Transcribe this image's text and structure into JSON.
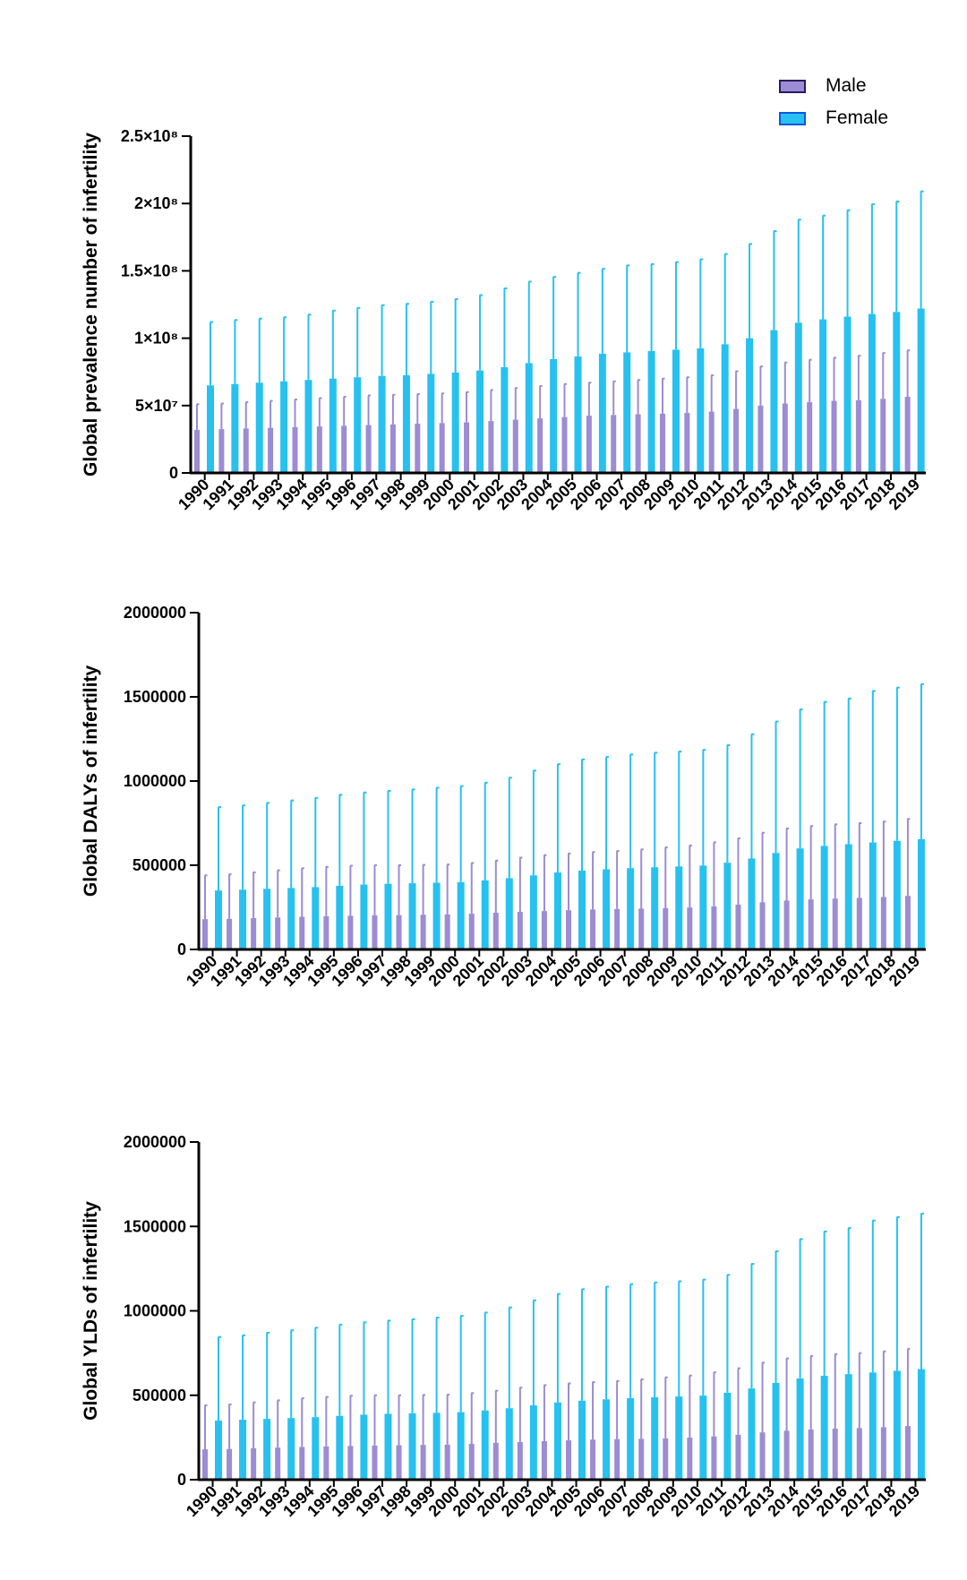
{
  "legend": {
    "male_label": "Male",
    "female_label": "Female"
  },
  "colors": {
    "male": "#9b8cd4",
    "female": "#27c1f0",
    "male_legend_edge": "#2a1a5e",
    "female_legend_edge": "#0a58e0"
  },
  "chart_data": [
    {
      "type": "bar",
      "ylabel": "Global prevalence number of infertility",
      "ylim": [
        0,
        250000000
      ],
      "yticks": [
        0,
        50000000,
        100000000,
        150000000,
        200000000,
        250000000
      ],
      "ytick_labels": [
        "0",
        "5×10⁷",
        "1×10⁸",
        "1.5×10⁸",
        "2×10⁸",
        "2.5×10⁸"
      ],
      "categories": [
        "1990",
        "1991",
        "1992",
        "1993",
        "1994",
        "1995",
        "1996",
        "1997",
        "1998",
        "1999",
        "2000",
        "2001",
        "2002",
        "2003",
        "2004",
        "2005",
        "2006",
        "2007",
        "2008",
        "2009",
        "2010",
        "2011",
        "2012",
        "2013",
        "2014",
        "2015",
        "2016",
        "2017",
        "2018",
        "2019"
      ],
      "series": [
        {
          "name": "Male",
          "values": [
            32000000,
            32500000,
            33000000,
            33500000,
            34000000,
            34500000,
            35000000,
            35500000,
            36000000,
            36500000,
            37000000,
            37500000,
            38500000,
            39500000,
            40500000,
            41500000,
            42500000,
            43000000,
            43500000,
            44000000,
            44500000,
            45500000,
            47500000,
            50000000,
            51500000,
            52500000,
            53500000,
            54000000,
            55000000,
            56500000
          ],
          "error_upper": [
            51000000,
            51500000,
            52500000,
            53500000,
            54500000,
            55500000,
            56500000,
            57500000,
            58000000,
            58500000,
            59000000,
            60000000,
            61500000,
            63000000,
            64500000,
            66000000,
            67000000,
            68000000,
            69000000,
            70000000,
            71000000,
            72500000,
            75500000,
            79000000,
            82000000,
            84000000,
            85500000,
            87000000,
            89000000,
            91000000
          ]
        },
        {
          "name": "Female",
          "values": [
            65000000,
            66000000,
            67000000,
            68000000,
            69000000,
            70000000,
            71000000,
            72000000,
            72500000,
            73500000,
            74500000,
            76000000,
            78500000,
            81500000,
            84500000,
            86500000,
            88500000,
            89500000,
            90500000,
            91500000,
            92500000,
            95500000,
            100000000,
            106000000,
            111500000,
            114000000,
            116000000,
            118000000,
            119500000,
            122000000
          ],
          "error_upper": [
            112000000,
            113500000,
            114500000,
            115500000,
            117500000,
            120500000,
            122500000,
            124500000,
            125500000,
            127000000,
            129000000,
            132000000,
            137000000,
            142000000,
            145500000,
            148500000,
            151500000,
            154000000,
            155000000,
            156500000,
            158500000,
            162500000,
            170000000,
            179500000,
            188000000,
            191000000,
            195000000,
            199500000,
            201500000,
            209000000
          ]
        }
      ]
    },
    {
      "type": "bar",
      "ylabel": "Global DALYs of infertility",
      "ylim": [
        0,
        2000000
      ],
      "yticks": [
        0,
        500000,
        1000000,
        1500000,
        2000000
      ],
      "ytick_labels": [
        "0",
        "500000",
        "1000000",
        "1500000",
        "2000000"
      ],
      "categories": [
        "1990",
        "1991",
        "1992",
        "1993",
        "1994",
        "1995",
        "1996",
        "1997",
        "1998",
        "1999",
        "2000",
        "2001",
        "2002",
        "2003",
        "2004",
        "2005",
        "2006",
        "2007",
        "2008",
        "2009",
        "2010",
        "2011",
        "2012",
        "2013",
        "2014",
        "2015",
        "2016",
        "2017",
        "2018",
        "2019"
      ],
      "series": [
        {
          "name": "Male",
          "values": [
            180000,
            182000,
            186000,
            190000,
            194000,
            197000,
            200000,
            202000,
            204000,
            206000,
            208000,
            212000,
            218000,
            223000,
            228000,
            233000,
            237000,
            240000,
            242000,
            245000,
            249000,
            256000,
            266000,
            280000,
            290000,
            297000,
            302000,
            306000,
            311000,
            318000
          ],
          "error_upper": [
            440000,
            446000,
            458000,
            470000,
            482000,
            490000,
            497000,
            500000,
            500000,
            502000,
            504000,
            513000,
            527000,
            545000,
            560000,
            570000,
            578000,
            585000,
            594000,
            606000,
            617000,
            636000,
            660000,
            693000,
            718000,
            733000,
            743000,
            750000,
            760000,
            775000
          ]
        },
        {
          "name": "Female",
          "values": [
            350000,
            355000,
            360000,
            365000,
            370000,
            378000,
            385000,
            390000,
            393000,
            396000,
            400000,
            410000,
            423000,
            440000,
            457000,
            468000,
            476000,
            483000,
            488000,
            493000,
            498000,
            515000,
            540000,
            573000,
            600000,
            615000,
            625000,
            635000,
            645000,
            655000
          ],
          "error_upper": [
            845000,
            855000,
            870000,
            885000,
            900000,
            918000,
            932000,
            942000,
            950000,
            960000,
            970000,
            990000,
            1020000,
            1062000,
            1100000,
            1128000,
            1143000,
            1158000,
            1168000,
            1175000,
            1185000,
            1213000,
            1278000,
            1353000,
            1425000,
            1470000,
            1490000,
            1535000,
            1555000,
            1575000
          ]
        }
      ]
    },
    {
      "type": "bar",
      "ylabel": "Global YLDs of infertility",
      "ylim": [
        0,
        2000000
      ],
      "yticks": [
        0,
        500000,
        1000000,
        1500000,
        2000000
      ],
      "ytick_labels": [
        "0",
        "500000",
        "1000000",
        "1500000",
        "2000000"
      ],
      "categories": [
        "1990",
        "1991",
        "1992",
        "1993",
        "1994",
        "1995",
        "1996",
        "1997",
        "1998",
        "1999",
        "2000",
        "2001",
        "2002",
        "2003",
        "2004",
        "2005",
        "2006",
        "2007",
        "2008",
        "2009",
        "2010",
        "2011",
        "2012",
        "2013",
        "2014",
        "2015",
        "2016",
        "2017",
        "2018",
        "2019"
      ],
      "series": [
        {
          "name": "Male",
          "values": [
            180000,
            182000,
            186000,
            190000,
            194000,
            197000,
            200000,
            202000,
            204000,
            206000,
            208000,
            212000,
            218000,
            223000,
            228000,
            233000,
            237000,
            240000,
            242000,
            245000,
            249000,
            256000,
            266000,
            280000,
            290000,
            297000,
            302000,
            306000,
            311000,
            318000
          ],
          "error_upper": [
            440000,
            446000,
            458000,
            470000,
            482000,
            490000,
            497000,
            500000,
            500000,
            502000,
            504000,
            513000,
            527000,
            545000,
            560000,
            570000,
            578000,
            585000,
            594000,
            606000,
            617000,
            636000,
            660000,
            693000,
            718000,
            733000,
            743000,
            750000,
            760000,
            775000
          ]
        },
        {
          "name": "Female",
          "values": [
            350000,
            355000,
            360000,
            365000,
            370000,
            378000,
            385000,
            390000,
            393000,
            396000,
            400000,
            410000,
            423000,
            440000,
            457000,
            468000,
            476000,
            483000,
            488000,
            493000,
            498000,
            515000,
            540000,
            573000,
            600000,
            615000,
            625000,
            635000,
            645000,
            655000
          ],
          "error_upper": [
            845000,
            855000,
            870000,
            885000,
            900000,
            918000,
            932000,
            942000,
            950000,
            960000,
            970000,
            990000,
            1020000,
            1062000,
            1100000,
            1128000,
            1143000,
            1158000,
            1168000,
            1175000,
            1185000,
            1213000,
            1278000,
            1353000,
            1425000,
            1470000,
            1490000,
            1535000,
            1555000,
            1575000
          ]
        }
      ]
    }
  ]
}
